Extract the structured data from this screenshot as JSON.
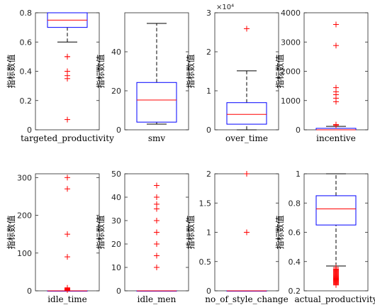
{
  "chart_data": [
    {
      "type": "boxplot",
      "xlabel": "targeted_productivity",
      "ylabel": "指标数值",
      "ylim": [
        0,
        0.8
      ],
      "yticks": [
        0,
        0.2,
        0.4,
        0.6,
        0.8
      ],
      "ytick_labels": [
        "0",
        "0.2",
        "0.4",
        "0.6",
        "0.8"
      ],
      "exponent_label": "",
      "box": {
        "whisker_low": 0.6,
        "q1": 0.7,
        "median": 0.75,
        "q3": 0.8,
        "whisker_high": 0.8
      },
      "outliers": [
        0.07,
        0.35,
        0.37,
        0.4,
        0.5,
        0.5
      ]
    },
    {
      "type": "boxplot",
      "xlabel": "smv",
      "ylabel": "指标数值",
      "ylim": [
        0,
        60
      ],
      "yticks": [
        0,
        20,
        40
      ],
      "ytick_labels": [
        "0",
        "20",
        "40"
      ],
      "exponent_label": "",
      "box": {
        "whisker_low": 2.9,
        "q1": 3.94,
        "median": 15.26,
        "q3": 24.26,
        "whisker_high": 54.56
      },
      "outliers": []
    },
    {
      "type": "boxplot",
      "xlabel": "over_time",
      "ylabel": "指标数值",
      "ylim": [
        0,
        30000
      ],
      "yticks": [
        0,
        10000,
        20000,
        30000
      ],
      "ytick_labels": [
        "0",
        "1",
        "2",
        "3"
      ],
      "exponent_label": "×10⁴",
      "box": {
        "whisker_low": 0,
        "q1": 1440,
        "median": 3960,
        "q3": 6960,
        "whisker_high": 15120
      },
      "outliers": [
        25920
      ]
    },
    {
      "type": "boxplot",
      "xlabel": "incentive",
      "ylabel": "指标数值",
      "ylim": [
        0,
        4000
      ],
      "yticks": [
        0,
        1000,
        2000,
        3000,
        4000
      ],
      "ytick_labels": [
        "0",
        "1000",
        "2000",
        "3000",
        "4000"
      ],
      "exponent_label": "",
      "box": {
        "whisker_low": 0,
        "q1": 0,
        "median": 0,
        "q3": 50,
        "whisker_high": 119
      },
      "outliers": [
        3600,
        2880,
        1440,
        1300,
        1200,
        1080,
        960,
        180,
        150
      ]
    },
    {
      "type": "boxplot",
      "xlabel": "idle_time",
      "ylabel": "指标数值",
      "ylim": [
        0,
        310
      ],
      "yticks": [
        0,
        100,
        200,
        300
      ],
      "ytick_labels": [
        "0",
        "100",
        "200",
        "300"
      ],
      "exponent_label": "",
      "box": {
        "whisker_low": 0,
        "q1": 0,
        "median": 0,
        "q3": 0,
        "whisker_high": 0
      },
      "outliers": [
        300,
        270,
        150,
        90,
        8,
        6.5,
        5,
        4.5,
        4,
        3.5,
        3,
        2
      ]
    },
    {
      "type": "boxplot",
      "xlabel": "idle_men",
      "ylabel": "指标数值",
      "ylim": [
        0,
        50
      ],
      "yticks": [
        0,
        10,
        20,
        30,
        40,
        50
      ],
      "ytick_labels": [
        "0",
        "10",
        "20",
        "30",
        "40",
        "50"
      ],
      "exponent_label": "",
      "box": {
        "whisker_low": 0,
        "q1": 0,
        "median": 0,
        "q3": 0,
        "whisker_high": 0
      },
      "outliers": [
        45,
        40,
        37,
        35,
        30,
        25,
        20,
        15,
        10
      ]
    },
    {
      "type": "boxplot",
      "xlabel": "no_of_style_change",
      "ylabel": "指标数值",
      "ylim": [
        0,
        2
      ],
      "yticks": [
        0,
        0.5,
        1,
        1.5,
        2
      ],
      "ytick_labels": [
        "0",
        "0.5",
        "1",
        "1.5",
        "2"
      ],
      "exponent_label": "",
      "box": {
        "whisker_low": 0,
        "q1": 0,
        "median": 0,
        "q3": 0,
        "whisker_high": 0
      },
      "outliers": [
        2,
        1
      ]
    },
    {
      "type": "boxplot",
      "xlabel": "actual_productivity",
      "ylabel": "指标数值",
      "ylim": [
        0.2,
        1
      ],
      "yticks": [
        0.2,
        0.4,
        0.6,
        0.8,
        1
      ],
      "ytick_labels": [
        "0.2",
        "0.4",
        "0.6",
        "0.8",
        "1"
      ],
      "exponent_label": "",
      "box": {
        "whisker_low": 0.37,
        "q1": 0.65,
        "median": 0.76,
        "q3": 0.85,
        "whisker_high": 1.0
      },
      "outliers": [
        0.36,
        0.35,
        0.345,
        0.34,
        0.335,
        0.33,
        0.325,
        0.32,
        0.315,
        0.31,
        0.305,
        0.3,
        0.295,
        0.29,
        0.285,
        0.28,
        0.275,
        0.27,
        0.265,
        0.26,
        0.255,
        0.25,
        0.245,
        0.24
      ]
    }
  ]
}
